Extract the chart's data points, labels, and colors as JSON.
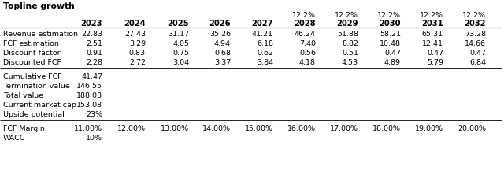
{
  "title": "Topline growth",
  "growth_rate": "12.2%",
  "years": [
    "2023",
    "2024",
    "2025",
    "2026",
    "2027",
    "2028",
    "2029",
    "2030",
    "2031",
    "2032"
  ],
  "revenue": [
    "22.83",
    "27.43",
    "31.17",
    "35.26",
    "41.21",
    "46.24",
    "51.88",
    "58.21",
    "65.31",
    "73.28"
  ],
  "fcf_est": [
    "2.51",
    "3.29",
    "4.05",
    "4.94",
    "6.18",
    "7.40",
    "8.82",
    "10.48",
    "12.41",
    "14.66"
  ],
  "discount_factor": [
    "0.91",
    "0.83",
    "0.75",
    "0.68",
    "0.62",
    "0.56",
    "0.51",
    "0.47",
    "0.47",
    "0.47"
  ],
  "discounted_fcf": [
    "2.28",
    "2.72",
    "3.04",
    "3.37",
    "3.84",
    "4.18",
    "4.53",
    "4.89",
    "5.79",
    "6.84"
  ],
  "cumulative_fcf": "41.47",
  "termination_value": "146.55",
  "total_value": "188.03",
  "current_market_cap": "153.08",
  "upside_potential": "23%",
  "fcf_margin": [
    "11.00%",
    "12.00%",
    "13.00%",
    "14.00%",
    "15.00%",
    "16.00%",
    "17.00%",
    "18.00%",
    "19.00%",
    "20.00%"
  ],
  "wacc": "10%",
  "bg_color": "#ffffff",
  "font_size": 6.8,
  "header_font_size": 7.2,
  "title_font_size": 7.8
}
